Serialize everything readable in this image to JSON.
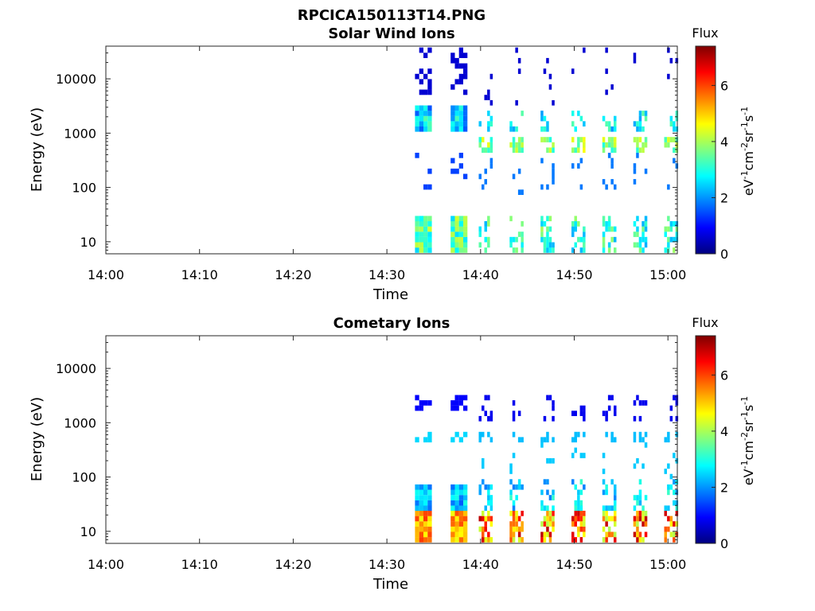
{
  "figure_title": "RPCICA150113T14.PNG",
  "chart_data": [
    {
      "type": "heatmap",
      "title": "Solar Wind Ions",
      "xlabel": "Time",
      "ylabel": "Energy (eV)",
      "x_ticks": [
        "14:00",
        "14:10",
        "14:20",
        "14:30",
        "14:40",
        "14:50",
        "15:00"
      ],
      "x_range_minutes": [
        0,
        61
      ],
      "y_scale": "log",
      "y_ticks": [
        "10",
        "100",
        "1000",
        "10000"
      ],
      "y_range": [
        6,
        40000
      ],
      "colorbar": {
        "label": "Flux",
        "unit": "eV-1cm-2sr-1s-1",
        "ticks": [
          "0",
          "2",
          "4",
          "6"
        ],
        "range": [
          0,
          7.4
        ]
      },
      "colormap": "jet",
      "grid": false,
      "data_start_minute": 33,
      "spectral_pattern": "sweeps every ~3.3 min; peak flux ~4.5 near 600 eV and ~3.5 near 10-25 eV after 14:39; blue scattered points at 1000-40000 eV"
    },
    {
      "type": "heatmap",
      "title": "Cometary Ions",
      "xlabel": "Time",
      "ylabel": "Energy (eV)",
      "x_ticks": [
        "14:00",
        "14:10",
        "14:20",
        "14:30",
        "14:40",
        "14:50",
        "15:00"
      ],
      "x_range_minutes": [
        0,
        61
      ],
      "y_scale": "log",
      "y_ticks": [
        "10",
        "100",
        "1000",
        "10000"
      ],
      "y_range": [
        6,
        40000
      ],
      "colorbar": {
        "label": "Flux",
        "unit": "eV-1cm-2sr-1s-1",
        "ticks": [
          "0",
          "2",
          "4",
          "6"
        ],
        "range": [
          0,
          7.4
        ]
      },
      "colormap": "jet",
      "grid": false,
      "data_start_minute": 33,
      "spectral_pattern": "sweeps every ~3.3 min; peak flux ~6.5 near 10-20 eV; ~2.5 at 30-100 eV; sparse blue at 1000-3000 eV"
    }
  ]
}
